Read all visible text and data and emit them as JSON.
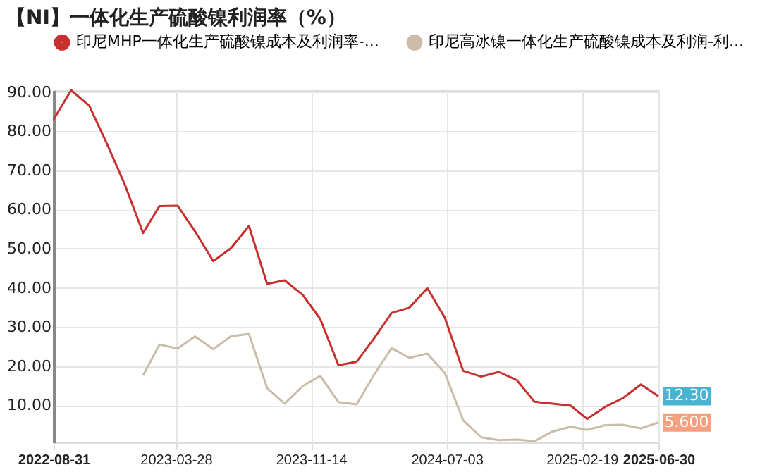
{
  "chart_data": {
    "type": "line",
    "title": "【NI】一体化生产硫酸镍利润率（%）",
    "x": [
      "2022-08-31",
      "2022-09-30",
      "2022-10-31",
      "2022-11-30",
      "2022-12-31",
      "2023-01-31",
      "2023-02-28",
      "2023-03-31",
      "2023-04-30",
      "2023-05-31",
      "2023-06-30",
      "2023-07-31",
      "2023-08-31",
      "2023-09-30",
      "2023-10-31",
      "2023-11-30",
      "2023-12-31",
      "2024-01-31",
      "2024-02-29",
      "2024-03-31",
      "2024-04-30",
      "2024-05-31",
      "2024-06-30",
      "2024-07-31",
      "2024-08-31",
      "2024-09-30",
      "2024-10-31",
      "2024-11-30",
      "2024-12-31",
      "2025-01-31",
      "2025-02-28",
      "2025-03-31",
      "2025-04-30",
      "2025-05-31",
      "2025-06-30"
    ],
    "series": [
      {
        "name": "印尼MHP一体化生产硫酸镍成本及利润率-...",
        "color": "#c8302f",
        "values": [
          83.0,
          90.5,
          86.5,
          76.9,
          66.3,
          54.0,
          60.9,
          61.0,
          54.4,
          46.8,
          50.1,
          55.8,
          41.0,
          41.9,
          38.2,
          32.0,
          20.2,
          21.1,
          26.9,
          33.6,
          34.9,
          39.9,
          32.3,
          18.8,
          17.3,
          18.5,
          16.4,
          10.9,
          10.4,
          9.9,
          6.5,
          9.6,
          11.8,
          15.3,
          12.3
        ],
        "value_labels": [
          null,
          null,
          null,
          null,
          null,
          null,
          null,
          null,
          null,
          null,
          null,
          null,
          null,
          null,
          null,
          null,
          null,
          null,
          null,
          null,
          null,
          null,
          null,
          null,
          null,
          null,
          null,
          null,
          null,
          null,
          null,
          null,
          null,
          null,
          "12.30"
        ]
      },
      {
        "name": "印尼高冰镍一体化生产硫酸镍成本及利润-利...",
        "color": "#cbbca8",
        "values": [
          null,
          null,
          null,
          null,
          null,
          17.6,
          25.5,
          24.5,
          27.6,
          24.3,
          27.6,
          28.2,
          14.4,
          10.4,
          14.9,
          17.5,
          10.8,
          10.2,
          17.6,
          24.6,
          22.1,
          23.2,
          18.2,
          6.2,
          1.8,
          1.1,
          1.2,
          0.8,
          3.3,
          4.5,
          3.7,
          4.9,
          5.0,
          4.1,
          5.6
        ],
        "value_labels": [
          null,
          null,
          null,
          null,
          null,
          null,
          null,
          null,
          null,
          null,
          null,
          null,
          null,
          null,
          null,
          null,
          null,
          null,
          null,
          null,
          null,
          null,
          null,
          null,
          null,
          null,
          null,
          null,
          null,
          null,
          null,
          null,
          null,
          null,
          "5.600"
        ]
      }
    ],
    "xlim": [
      "2022-08-31",
      "2025-06-30"
    ],
    "xticks": [
      "2022-08-31",
      "2023-03-28",
      "2023-11-14",
      "2024-07-03",
      "2025-02-19",
      "2025-06-30"
    ],
    "ylim": [
      0.5,
      90.5
    ],
    "yticks": [
      {
        "value": 10,
        "label": "10.00"
      },
      {
        "value": 20,
        "label": "20.00"
      },
      {
        "value": 30,
        "label": "30.00"
      },
      {
        "value": 40,
        "label": "40.00"
      },
      {
        "value": 50,
        "label": "50.00"
      },
      {
        "value": 60,
        "label": "60.00"
      },
      {
        "value": 70,
        "label": "70.00"
      },
      {
        "value": 80,
        "label": "80.00"
      },
      {
        "value": 90,
        "label": "90.00"
      }
    ],
    "grid": true,
    "legend": "top",
    "marker": "none",
    "line_style": "solid"
  }
}
